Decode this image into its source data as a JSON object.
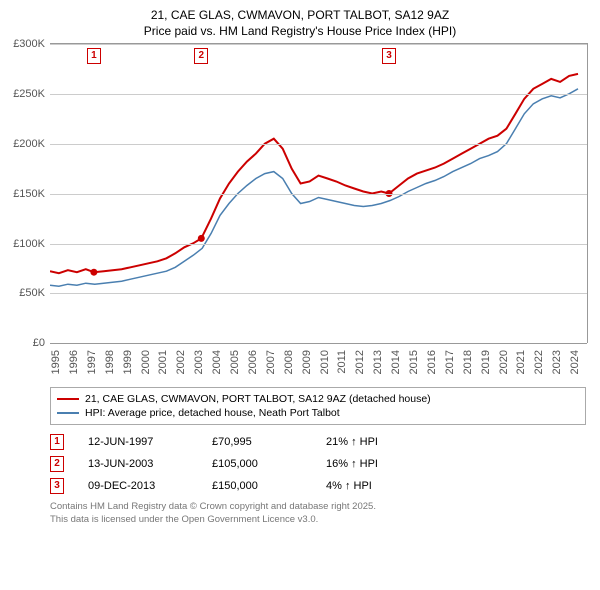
{
  "title_line1": "21, CAE GLAS, CWMAVON, PORT TALBOT, SA12 9AZ",
  "title_line2": "Price paid vs. HM Land Registry's House Price Index (HPI)",
  "chart": {
    "type": "line",
    "background_color": "#ffffff",
    "grid_color": "#cccccc",
    "axis_color": "#999999",
    "label_color": "#555555",
    "label_fontsize": 11,
    "x_years": [
      1995,
      1996,
      1997,
      1998,
      1999,
      2000,
      2001,
      2002,
      2003,
      2004,
      2005,
      2006,
      2007,
      2008,
      2009,
      2010,
      2011,
      2012,
      2013,
      2014,
      2015,
      2016,
      2017,
      2018,
      2019,
      2020,
      2021,
      2022,
      2023,
      2024
    ],
    "y_ticks": [
      0,
      50000,
      100000,
      150000,
      200000,
      250000,
      300000
    ],
    "y_tick_labels": [
      "£0",
      "£50K",
      "£100K",
      "£150K",
      "£200K",
      "£250K",
      "£300K"
    ],
    "ylim": [
      0,
      300000
    ],
    "series": [
      {
        "name": "price_paid",
        "label": "21, CAE GLAS, CWMAVON, PORT TALBOT, SA12 9AZ (detached house)",
        "color": "#cc0000",
        "line_width": 2,
        "data": [
          [
            1995,
            72000
          ],
          [
            1995.5,
            70000
          ],
          [
            1996,
            73000
          ],
          [
            1996.5,
            71000
          ],
          [
            1997,
            74000
          ],
          [
            1997.45,
            70995
          ],
          [
            1998,
            72000
          ],
          [
            1998.5,
            73000
          ],
          [
            1999,
            74000
          ],
          [
            1999.5,
            76000
          ],
          [
            2000,
            78000
          ],
          [
            2000.5,
            80000
          ],
          [
            2001,
            82000
          ],
          [
            2001.5,
            85000
          ],
          [
            2002,
            90000
          ],
          [
            2002.5,
            96000
          ],
          [
            2003,
            100000
          ],
          [
            2003.45,
            105000
          ],
          [
            2004,
            125000
          ],
          [
            2004.5,
            145000
          ],
          [
            2005,
            160000
          ],
          [
            2005.5,
            172000
          ],
          [
            2006,
            182000
          ],
          [
            2006.5,
            190000
          ],
          [
            2007,
            200000
          ],
          [
            2007.5,
            205000
          ],
          [
            2008,
            195000
          ],
          [
            2008.5,
            175000
          ],
          [
            2009,
            160000
          ],
          [
            2009.5,
            162000
          ],
          [
            2010,
            168000
          ],
          [
            2010.5,
            165000
          ],
          [
            2011,
            162000
          ],
          [
            2011.5,
            158000
          ],
          [
            2012,
            155000
          ],
          [
            2012.5,
            152000
          ],
          [
            2013,
            150000
          ],
          [
            2013.5,
            152000
          ],
          [
            2013.94,
            150000
          ],
          [
            2014.5,
            158000
          ],
          [
            2015,
            165000
          ],
          [
            2015.5,
            170000
          ],
          [
            2016,
            173000
          ],
          [
            2016.5,
            176000
          ],
          [
            2017,
            180000
          ],
          [
            2017.5,
            185000
          ],
          [
            2018,
            190000
          ],
          [
            2018.5,
            195000
          ],
          [
            2019,
            200000
          ],
          [
            2019.5,
            205000
          ],
          [
            2020,
            208000
          ],
          [
            2020.5,
            215000
          ],
          [
            2021,
            230000
          ],
          [
            2021.5,
            245000
          ],
          [
            2022,
            255000
          ],
          [
            2022.5,
            260000
          ],
          [
            2023,
            265000
          ],
          [
            2023.5,
            262000
          ],
          [
            2024,
            268000
          ],
          [
            2024.5,
            270000
          ]
        ]
      },
      {
        "name": "hpi",
        "label": "HPI: Average price, detached house, Neath Port Talbot",
        "color": "#4a7fb0",
        "line_width": 1.5,
        "data": [
          [
            1995,
            58000
          ],
          [
            1995.5,
            57000
          ],
          [
            1996,
            59000
          ],
          [
            1996.5,
            58000
          ],
          [
            1997,
            60000
          ],
          [
            1997.5,
            59000
          ],
          [
            1998,
            60000
          ],
          [
            1998.5,
            61000
          ],
          [
            1999,
            62000
          ],
          [
            1999.5,
            64000
          ],
          [
            2000,
            66000
          ],
          [
            2000.5,
            68000
          ],
          [
            2001,
            70000
          ],
          [
            2001.5,
            72000
          ],
          [
            2002,
            76000
          ],
          [
            2002.5,
            82000
          ],
          [
            2003,
            88000
          ],
          [
            2003.5,
            95000
          ],
          [
            2004,
            110000
          ],
          [
            2004.5,
            128000
          ],
          [
            2005,
            140000
          ],
          [
            2005.5,
            150000
          ],
          [
            2006,
            158000
          ],
          [
            2006.5,
            165000
          ],
          [
            2007,
            170000
          ],
          [
            2007.5,
            172000
          ],
          [
            2008,
            165000
          ],
          [
            2008.5,
            150000
          ],
          [
            2009,
            140000
          ],
          [
            2009.5,
            142000
          ],
          [
            2010,
            146000
          ],
          [
            2010.5,
            144000
          ],
          [
            2011,
            142000
          ],
          [
            2011.5,
            140000
          ],
          [
            2012,
            138000
          ],
          [
            2012.5,
            137000
          ],
          [
            2013,
            138000
          ],
          [
            2013.5,
            140000
          ],
          [
            2014,
            143000
          ],
          [
            2014.5,
            147000
          ],
          [
            2015,
            152000
          ],
          [
            2015.5,
            156000
          ],
          [
            2016,
            160000
          ],
          [
            2016.5,
            163000
          ],
          [
            2017,
            167000
          ],
          [
            2017.5,
            172000
          ],
          [
            2018,
            176000
          ],
          [
            2018.5,
            180000
          ],
          [
            2019,
            185000
          ],
          [
            2019.5,
            188000
          ],
          [
            2020,
            192000
          ],
          [
            2020.5,
            200000
          ],
          [
            2021,
            215000
          ],
          [
            2021.5,
            230000
          ],
          [
            2022,
            240000
          ],
          [
            2022.5,
            245000
          ],
          [
            2023,
            248000
          ],
          [
            2023.5,
            246000
          ],
          [
            2024,
            250000
          ],
          [
            2024.5,
            255000
          ]
        ]
      }
    ],
    "markers": [
      {
        "id": "1",
        "x_year": 1997.45,
        "color": "#cc0000"
      },
      {
        "id": "2",
        "x_year": 2003.45,
        "color": "#cc0000"
      },
      {
        "id": "3",
        "x_year": 2013.94,
        "color": "#cc0000"
      }
    ]
  },
  "legend": {
    "series1_label": "21, CAE GLAS, CWMAVON, PORT TALBOT, SA12 9AZ (detached house)",
    "series2_label": "HPI: Average price, detached house, Neath Port Talbot",
    "series1_color": "#cc0000",
    "series2_color": "#4a7fb0"
  },
  "sales": [
    {
      "id": "1",
      "date": "12-JUN-1997",
      "price": "£70,995",
      "diff": "21% ↑ HPI",
      "color": "#cc0000"
    },
    {
      "id": "2",
      "date": "13-JUN-2003",
      "price": "£105,000",
      "diff": "16% ↑ HPI",
      "color": "#cc0000"
    },
    {
      "id": "3",
      "date": "09-DEC-2013",
      "price": "£150,000",
      "diff": "4% ↑ HPI",
      "color": "#cc0000"
    }
  ],
  "footer_line1": "Contains HM Land Registry data © Crown copyright and database right 2025.",
  "footer_line2": "This data is licensed under the Open Government Licence v3.0."
}
